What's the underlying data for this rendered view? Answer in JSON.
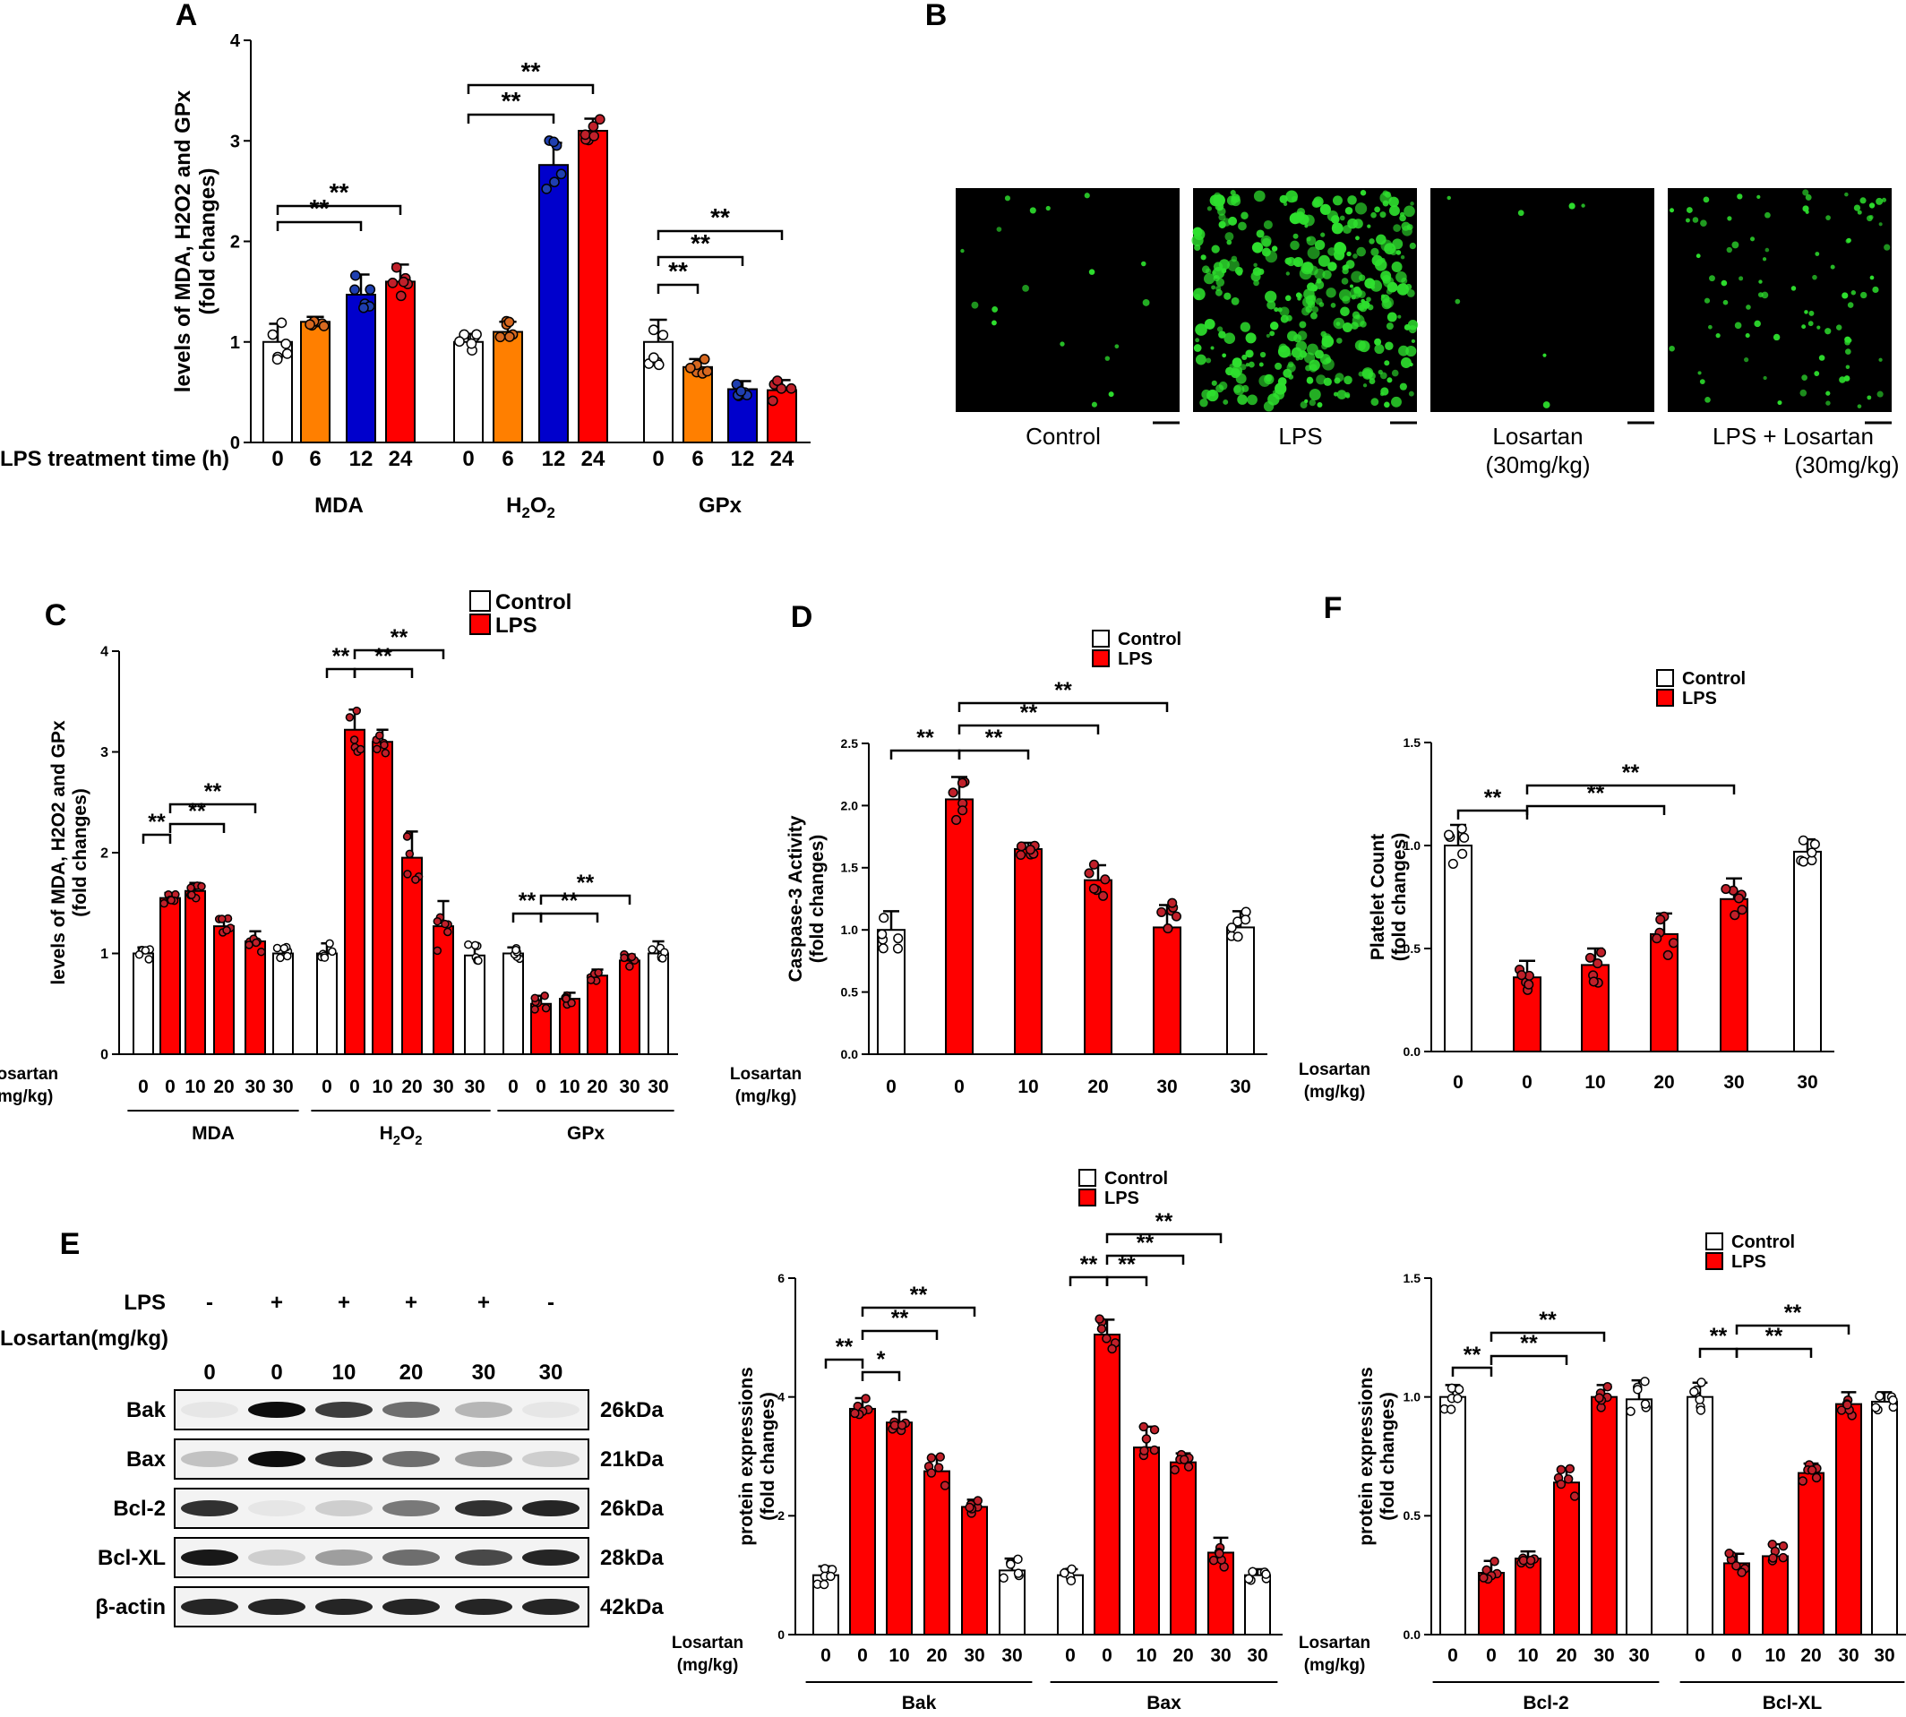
{
  "colors": {
    "control": "#ffffff",
    "lps": "#ff0000",
    "orange": "#ff7f00",
    "blue": "#0000cc",
    "dot_red": "#c0202a",
    "dot_blue": "#1f3fb0",
    "dot_orange": "#d76820",
    "micro_bg": "#000000",
    "micro_cell": "#2ee02e"
  },
  "legend": {
    "control": "Control",
    "lps": "LPS"
  },
  "panel_labels": {
    "a": "A",
    "b": "B",
    "c": "C",
    "d": "D",
    "e": "E",
    "f": "F"
  },
  "sig": {
    "double": "**",
    "single": "*"
  },
  "chart_data": [
    {
      "id": "A",
      "type": "bar",
      "ylabel": "levels of MDA, H2O2 and GPx",
      "ylabel_sub": "(fold changes)",
      "xlabel_row": "LPS treatment time (h)",
      "ylim": [
        0,
        4
      ],
      "yticks": [
        "0",
        "1",
        "2",
        "3",
        "4"
      ],
      "categories": [
        "0",
        "6",
        "12",
        "24",
        "0",
        "6",
        "12",
        "24",
        "0",
        "6",
        "12",
        "24"
      ],
      "groups": [
        "MDA",
        "H2O2",
        "GPx"
      ],
      "values": [
        1.0,
        1.2,
        1.47,
        1.6,
        1.0,
        1.1,
        2.76,
        3.1,
        1.0,
        0.75,
        0.53,
        0.52
      ],
      "errors": [
        0.18,
        0.05,
        0.2,
        0.17,
        0.08,
        0.1,
        0.22,
        0.12,
        0.22,
        0.08,
        0.08,
        0.1
      ],
      "colors": [
        "control",
        "orange",
        "blue",
        "lps",
        "control",
        "orange",
        "blue",
        "lps",
        "control",
        "orange",
        "blue",
        "lps"
      ]
    },
    {
      "id": "C",
      "type": "bar",
      "ylabel": "levels of MDA, H2O2 and GPx",
      "ylabel_sub": "(fold changes)",
      "xlabel_row": [
        "Losartan",
        "(mg/kg)"
      ],
      "ylim": [
        0,
        4
      ],
      "yticks": [
        "0",
        "1",
        "2",
        "3",
        "4"
      ],
      "categories": [
        "0",
        "0",
        "10",
        "20",
        "30",
        "30",
        "0",
        "0",
        "10",
        "20",
        "30",
        "30",
        "0",
        "0",
        "10",
        "20",
        "30",
        "30"
      ],
      "groups": [
        "MDA",
        "H2O2",
        "GPx"
      ],
      "values": [
        1.0,
        1.55,
        1.62,
        1.27,
        1.12,
        1.0,
        1.0,
        3.22,
        3.1,
        1.95,
        1.27,
        0.98,
        1.0,
        0.5,
        0.55,
        0.78,
        0.93,
        1.0
      ],
      "errors": [
        0.06,
        0.05,
        0.08,
        0.08,
        0.1,
        0.06,
        0.1,
        0.2,
        0.12,
        0.26,
        0.25,
        0.1,
        0.06,
        0.08,
        0.06,
        0.06,
        0.06,
        0.12
      ],
      "colors": [
        "control",
        "lps",
        "lps",
        "lps",
        "lps",
        "control",
        "control",
        "lps",
        "lps",
        "lps",
        "lps",
        "control",
        "control",
        "lps",
        "lps",
        "lps",
        "lps",
        "control"
      ]
    },
    {
      "id": "D",
      "type": "bar",
      "ylabel": "Caspase-3 Activity",
      "ylabel_sub": "(fold changes)",
      "xlabel_row": [
        "Losartan",
        "(mg/kg)"
      ],
      "ylim": [
        0,
        2.5
      ],
      "yticks": [
        "0.0",
        "0.5",
        "1.0",
        "1.5",
        "2.0",
        "2.5"
      ],
      "categories": [
        "0",
        "0",
        "10",
        "20",
        "30",
        "30"
      ],
      "values": [
        1.0,
        2.05,
        1.65,
        1.4,
        1.02,
        1.02
      ],
      "errors": [
        0.15,
        0.18,
        0.05,
        0.12,
        0.18,
        0.13
      ],
      "colors": [
        "control",
        "lps",
        "lps",
        "lps",
        "lps",
        "control"
      ]
    },
    {
      "id": "F",
      "type": "bar",
      "ylabel": "Platelet Count",
      "ylabel_sub": "(fold changes)",
      "xlabel_row": [
        "Losartan",
        "(mg/kg)"
      ],
      "ylim": [
        0,
        1.5
      ],
      "yticks": [
        "0.0",
        "0.5",
        "1.0",
        "1.5"
      ],
      "categories": [
        "0",
        "0",
        "10",
        "20",
        "30",
        "30"
      ],
      "values": [
        1.0,
        0.36,
        0.42,
        0.57,
        0.74,
        0.97
      ],
      "errors": [
        0.1,
        0.08,
        0.08,
        0.1,
        0.1,
        0.06
      ],
      "colors": [
        "control",
        "lps",
        "lps",
        "lps",
        "lps",
        "control"
      ]
    },
    {
      "id": "E1",
      "type": "bar",
      "ylabel": "protein expressions",
      "ylabel_sub": "(fold changes)",
      "xlabel_row": [
        "Losartan",
        "(mg/kg)"
      ],
      "ylim": [
        0,
        6
      ],
      "yticks": [
        "0",
        "2",
        "4",
        "6"
      ],
      "categories": [
        "0",
        "0",
        "10",
        "20",
        "30",
        "30",
        "0",
        "0",
        "10",
        "20",
        "30",
        "30"
      ],
      "groups": [
        "Bak",
        "Bax"
      ],
      "values": [
        1.0,
        3.8,
        3.57,
        2.75,
        2.15,
        1.08,
        1.0,
        5.05,
        3.15,
        2.9,
        1.38,
        1.0
      ],
      "errors": [
        0.15,
        0.18,
        0.18,
        0.25,
        0.12,
        0.2,
        0.1,
        0.25,
        0.35,
        0.15,
        0.25,
        0.1
      ],
      "colors": [
        "control",
        "lps",
        "lps",
        "lps",
        "lps",
        "control",
        "control",
        "lps",
        "lps",
        "lps",
        "lps",
        "control"
      ]
    },
    {
      "id": "E2",
      "type": "bar",
      "ylabel": "protein expressions",
      "ylabel_sub": "(fold changes)",
      "xlabel_row": [
        "Losartan",
        "(mg/kg)"
      ],
      "ylim": [
        0,
        1.5
      ],
      "yticks": [
        "0.0",
        "0.5",
        "1.0",
        "1.5"
      ],
      "categories": [
        "0",
        "0",
        "10",
        "20",
        "30",
        "30",
        "0",
        "0",
        "10",
        "20",
        "30",
        "30"
      ],
      "groups": [
        "Bcl-2",
        "Bcl-XL"
      ],
      "values": [
        1.0,
        0.26,
        0.32,
        0.64,
        1.0,
        0.99,
        1.0,
        0.3,
        0.33,
        0.68,
        0.97,
        0.98
      ],
      "errors": [
        0.05,
        0.05,
        0.03,
        0.06,
        0.05,
        0.08,
        0.06,
        0.04,
        0.05,
        0.04,
        0.05,
        0.04
      ],
      "colors": [
        "control",
        "lps",
        "lps",
        "lps",
        "lps",
        "control",
        "control",
        "lps",
        "lps",
        "lps",
        "lps",
        "control"
      ]
    }
  ],
  "panel_b": {
    "images": [
      "Control",
      "LPS",
      "Losartan",
      "LPS + Losartan"
    ],
    "sublabels": [
      "",
      "",
      "(30mg/kg)",
      "(30mg/kg)"
    ],
    "densities": [
      0.05,
      1.0,
      0.02,
      0.25
    ]
  },
  "panel_e_blot": {
    "header_lps": "LPS",
    "lps_marks": [
      "-",
      "+",
      "+",
      "+",
      "+",
      "-"
    ],
    "header_losartan": "Losartan(mg/kg)",
    "losartan_doses": [
      "0",
      "0",
      "10",
      "20",
      "30",
      "30"
    ],
    "proteins": [
      "Bak",
      "Bax",
      "Bcl-2",
      "Bcl-XL",
      "β-actin"
    ],
    "sizes": [
      "26kDa",
      "21kDa",
      "26kDa",
      "28kDa",
      "42kDa"
    ],
    "intensities": [
      [
        0.05,
        0.95,
        0.75,
        0.55,
        0.25,
        0.05
      ],
      [
        0.2,
        0.95,
        0.75,
        0.55,
        0.35,
        0.15
      ],
      [
        0.8,
        0.05,
        0.15,
        0.5,
        0.8,
        0.85
      ],
      [
        0.9,
        0.15,
        0.35,
        0.55,
        0.7,
        0.85
      ],
      [
        0.85,
        0.85,
        0.85,
        0.85,
        0.85,
        0.85
      ]
    ]
  }
}
